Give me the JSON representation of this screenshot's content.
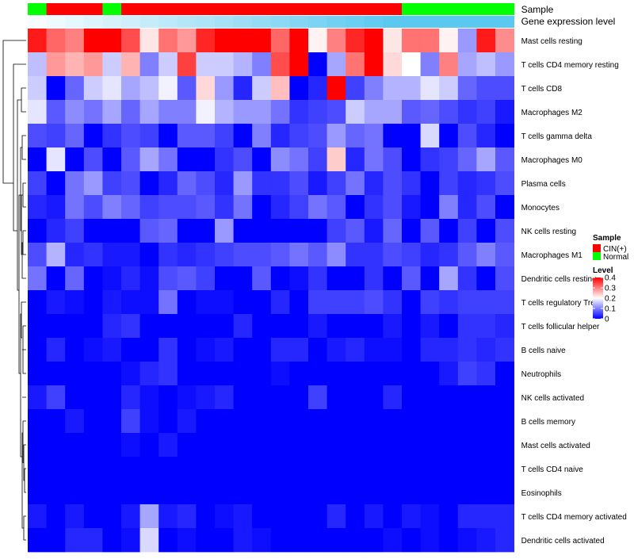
{
  "chart_data": {
    "type": "heatmap",
    "title": "",
    "annotation_titles": {
      "sample": "Sample",
      "expression": "Gene expression level"
    },
    "sample_annotation": [
      "Normal",
      "CIN(+)",
      "CIN(+)",
      "CIN(+)",
      "Normal",
      "CIN(+)",
      "CIN(+)",
      "CIN(+)",
      "CIN(+)",
      "CIN(+)",
      "CIN(+)",
      "CIN(+)",
      "CIN(+)",
      "CIN(+)",
      "CIN(+)",
      "CIN(+)",
      "CIN(+)",
      "CIN(+)",
      "CIN(+)",
      "CIN(+)",
      "Normal",
      "Normal",
      "Normal",
      "Normal",
      "Normal",
      "Normal"
    ],
    "expression_annotation": [
      0.05,
      0.1,
      0.15,
      0.2,
      0.25,
      0.3,
      0.35,
      0.4,
      0.45,
      0.5,
      0.55,
      0.6,
      0.65,
      0.7,
      0.75,
      0.8,
      0.85,
      0.9,
      0.95,
      1.0,
      1.0,
      1.0,
      1.0,
      1.0,
      1.0,
      1.0
    ],
    "row_labels": [
      "Mast cells resting",
      "T cells CD4 memory resting",
      "T cells CD8",
      "Macrophages M2",
      "T cells gamma delta",
      "Macrophages M0",
      "Plasma cells",
      "Monocytes",
      "NK cells resting",
      "Macrophages M1",
      "Dendritic cells resting",
      "T cells regulatory  Tregs",
      "T cells follicular helper",
      "B cells naive",
      "Neutrophils",
      "NK cells activated",
      "B cells memory",
      "Mast cells activated",
      "T cells CD4 naive",
      "Eosinophils",
      "T cells CD4 memory activated",
      "Dendritic cells activated"
    ],
    "values": [
      [
        0.38,
        0.32,
        0.3,
        0.4,
        0.4,
        0.34,
        0.22,
        0.31,
        0.28,
        0.37,
        0.4,
        0.4,
        0.4,
        0.32,
        0.4,
        0.21,
        0.3,
        0.37,
        0.4,
        0.22,
        0.31,
        0.31,
        0.21,
        0.12,
        0.38,
        0.29
      ],
      [
        0.15,
        0.28,
        0.26,
        0.28,
        0.16,
        0.26,
        0.1,
        0.16,
        0.35,
        0.16,
        0.16,
        0.14,
        0.1,
        0.34,
        0.4,
        0.0,
        0.13,
        0.31,
        0.4,
        0.23,
        0.2,
        0.1,
        0.3,
        0.13,
        0.15,
        0.12
      ],
      [
        0.16,
        0.0,
        0.08,
        0.16,
        0.18,
        0.13,
        0.15,
        0.19,
        0.07,
        0.23,
        0.12,
        0.03,
        0.16,
        0.25,
        0.0,
        0.03,
        0.4,
        0.05,
        0.1,
        0.14,
        0.14,
        0.18,
        0.16,
        0.08,
        0.06,
        0.06
      ],
      [
        0.18,
        0.07,
        0.11,
        0.09,
        0.13,
        0.08,
        0.13,
        0.1,
        0.1,
        0.19,
        0.14,
        0.12,
        0.12,
        0.09,
        0.04,
        0.05,
        0.06,
        0.16,
        0.13,
        0.13,
        0.07,
        0.08,
        0.06,
        0.04,
        0.05,
        0.02
      ],
      [
        0.06,
        0.05,
        0.08,
        0.0,
        0.04,
        0.06,
        0.05,
        0.0,
        0.07,
        0.07,
        0.05,
        0.0,
        0.1,
        0.03,
        0.05,
        0.06,
        0.12,
        0.08,
        0.09,
        0.0,
        0.0,
        0.17,
        0.0,
        0.06,
        0.03,
        0.0
      ],
      [
        0.0,
        0.18,
        0.0,
        0.06,
        0.0,
        0.07,
        0.13,
        0.09,
        0.0,
        0.0,
        0.04,
        0.06,
        0.0,
        0.11,
        0.09,
        0.05,
        0.24,
        0.03,
        0.09,
        0.06,
        0.0,
        0.04,
        0.05,
        0.08,
        0.13,
        0.07
      ],
      [
        0.05,
        0.0,
        0.09,
        0.12,
        0.05,
        0.06,
        0.0,
        0.03,
        0.08,
        0.06,
        0.03,
        0.12,
        0.04,
        0.04,
        0.06,
        0.02,
        0.05,
        0.09,
        0.03,
        0.06,
        0.04,
        0.0,
        0.05,
        0.03,
        0.04,
        0.06
      ],
      [
        0.03,
        0.02,
        0.09,
        0.06,
        0.1,
        0.08,
        0.05,
        0.06,
        0.06,
        0.07,
        0.04,
        0.09,
        0.0,
        0.03,
        0.05,
        0.09,
        0.07,
        0.0,
        0.04,
        0.06,
        0.02,
        0.0,
        0.1,
        0.03,
        0.06,
        0.0
      ],
      [
        0.0,
        0.03,
        0.05,
        0.0,
        0.0,
        0.0,
        0.07,
        0.08,
        0.0,
        0.0,
        0.12,
        0.0,
        0.0,
        0.0,
        0.0,
        0.0,
        0.05,
        0.07,
        0.02,
        0.08,
        0.0,
        0.07,
        0.0,
        0.05,
        0.0,
        0.06
      ],
      [
        0.06,
        0.14,
        0.03,
        0.04,
        0.02,
        0.02,
        0.0,
        0.04,
        0.03,
        0.04,
        0.05,
        0.06,
        0.06,
        0.07,
        0.09,
        0.07,
        0.11,
        0.04,
        0.04,
        0.06,
        0.05,
        0.03,
        0.04,
        0.07,
        0.1,
        0.07
      ],
      [
        0.09,
        0.0,
        0.08,
        0.0,
        0.01,
        0.03,
        0.01,
        0.06,
        0.07,
        0.05,
        0.0,
        0.0,
        0.07,
        0.0,
        0.01,
        0.04,
        0.0,
        0.0,
        0.04,
        0.0,
        0.07,
        0.0,
        0.13,
        0.04,
        0.0,
        0.06
      ],
      [
        0.0,
        0.02,
        0.01,
        0.0,
        0.02,
        0.01,
        0.01,
        0.09,
        0.0,
        0.01,
        0.01,
        0.0,
        0.0,
        0.03,
        0.0,
        0.05,
        0.05,
        0.05,
        0.06,
        0.04,
        0.0,
        0.05,
        0.04,
        0.05,
        0.05,
        0.05
      ],
      [
        0.0,
        0.0,
        0.0,
        0.0,
        0.03,
        0.04,
        0.0,
        0.0,
        0.0,
        0.0,
        0.0,
        0.03,
        0.0,
        0.0,
        0.0,
        0.02,
        0.0,
        0.0,
        0.0,
        0.02,
        0.0,
        0.02,
        0.0,
        0.04,
        0.04,
        0.03
      ],
      [
        0.0,
        0.03,
        0.0,
        0.01,
        0.02,
        0.0,
        0.0,
        0.04,
        0.0,
        0.01,
        0.02,
        0.0,
        0.0,
        0.03,
        0.03,
        0.0,
        0.02,
        0.03,
        0.01,
        0.01,
        0.0,
        0.03,
        0.03,
        0.04,
        0.03,
        0.04
      ],
      [
        0.0,
        0.0,
        0.0,
        0.0,
        0.0,
        0.01,
        0.03,
        0.04,
        0.0,
        0.0,
        0.0,
        0.0,
        0.0,
        0.01,
        0.0,
        0.0,
        0.0,
        0.0,
        0.0,
        0.0,
        0.0,
        0.0,
        0.02,
        0.05,
        0.04,
        0.0
      ],
      [
        0.02,
        0.05,
        0.0,
        0.0,
        0.0,
        0.03,
        0.01,
        0.0,
        0.01,
        0.02,
        0.03,
        0.0,
        0.0,
        0.0,
        0.0,
        0.05,
        0.0,
        0.0,
        0.0,
        0.03,
        0.0,
        0.0,
        0.0,
        0.0,
        0.0,
        0.0
      ],
      [
        0.0,
        0.0,
        0.02,
        0.0,
        0.0,
        0.05,
        0.01,
        0.0,
        0.02,
        0.0,
        0.0,
        0.0,
        0.0,
        0.0,
        0.0,
        0.0,
        0.0,
        0.0,
        0.0,
        0.0,
        0.0,
        0.0,
        0.0,
        0.0,
        0.0,
        0.0
      ],
      [
        0.0,
        0.0,
        0.0,
        0.0,
        0.0,
        0.01,
        0.0,
        0.02,
        0.0,
        0.0,
        0.0,
        0.0,
        0.0,
        0.0,
        0.0,
        0.0,
        0.0,
        0.0,
        0.0,
        0.0,
        0.0,
        0.0,
        0.0,
        0.0,
        0.0,
        0.0
      ],
      [
        0.0,
        0.0,
        0.0,
        0.0,
        0.0,
        0.0,
        0.0,
        0.0,
        0.0,
        0.0,
        0.0,
        0.0,
        0.0,
        0.0,
        0.0,
        0.0,
        0.0,
        0.0,
        0.0,
        0.0,
        0.0,
        0.0,
        0.0,
        0.0,
        0.0,
        0.0
      ],
      [
        0.0,
        0.0,
        0.0,
        0.0,
        0.0,
        0.0,
        0.0,
        0.0,
        0.0,
        0.0,
        0.0,
        0.0,
        0.0,
        0.0,
        0.0,
        0.0,
        0.0,
        0.0,
        0.0,
        0.0,
        0.0,
        0.0,
        0.0,
        0.0,
        0.0,
        0.0
      ],
      [
        0.02,
        0.0,
        0.02,
        0.0,
        0.0,
        0.02,
        0.13,
        0.02,
        0.03,
        0.0,
        0.01,
        0.02,
        0.0,
        0.0,
        0.0,
        0.0,
        0.03,
        0.0,
        0.02,
        0.0,
        0.02,
        0.01,
        0.0,
        0.03,
        0.03,
        0.03
      ],
      [
        0.0,
        0.0,
        0.03,
        0.03,
        0.0,
        0.01,
        0.17,
        0.0,
        0.01,
        0.0,
        0.0,
        0.02,
        0.01,
        0.0,
        0.0,
        0.0,
        0.0,
        0.0,
        0.0,
        0.01,
        0.0,
        0.01,
        0.0,
        0.01,
        0.02,
        0.03
      ]
    ],
    "color_scale": {
      "low": "#0000ff",
      "mid": "#ffffff",
      "high": "#ff0000",
      "min": 0,
      "mid_value": 0.2,
      "max": 0.4
    },
    "sample_colors": {
      "CIN(+)": "#ff0000",
      "Normal": "#00ff00"
    },
    "expression_colors": {
      "low": "#ffffff",
      "high": "#5bc8f0"
    },
    "legend": {
      "sample": {
        "title": "Sample",
        "items": [
          "CIN(+)",
          "Normal"
        ]
      },
      "level": {
        "title": "Level",
        "ticks": [
          "0.4",
          "0.3",
          "0.2",
          "0.1",
          "0"
        ]
      }
    },
    "dendrogram": {
      "side": "left",
      "clustering": "rows"
    }
  }
}
